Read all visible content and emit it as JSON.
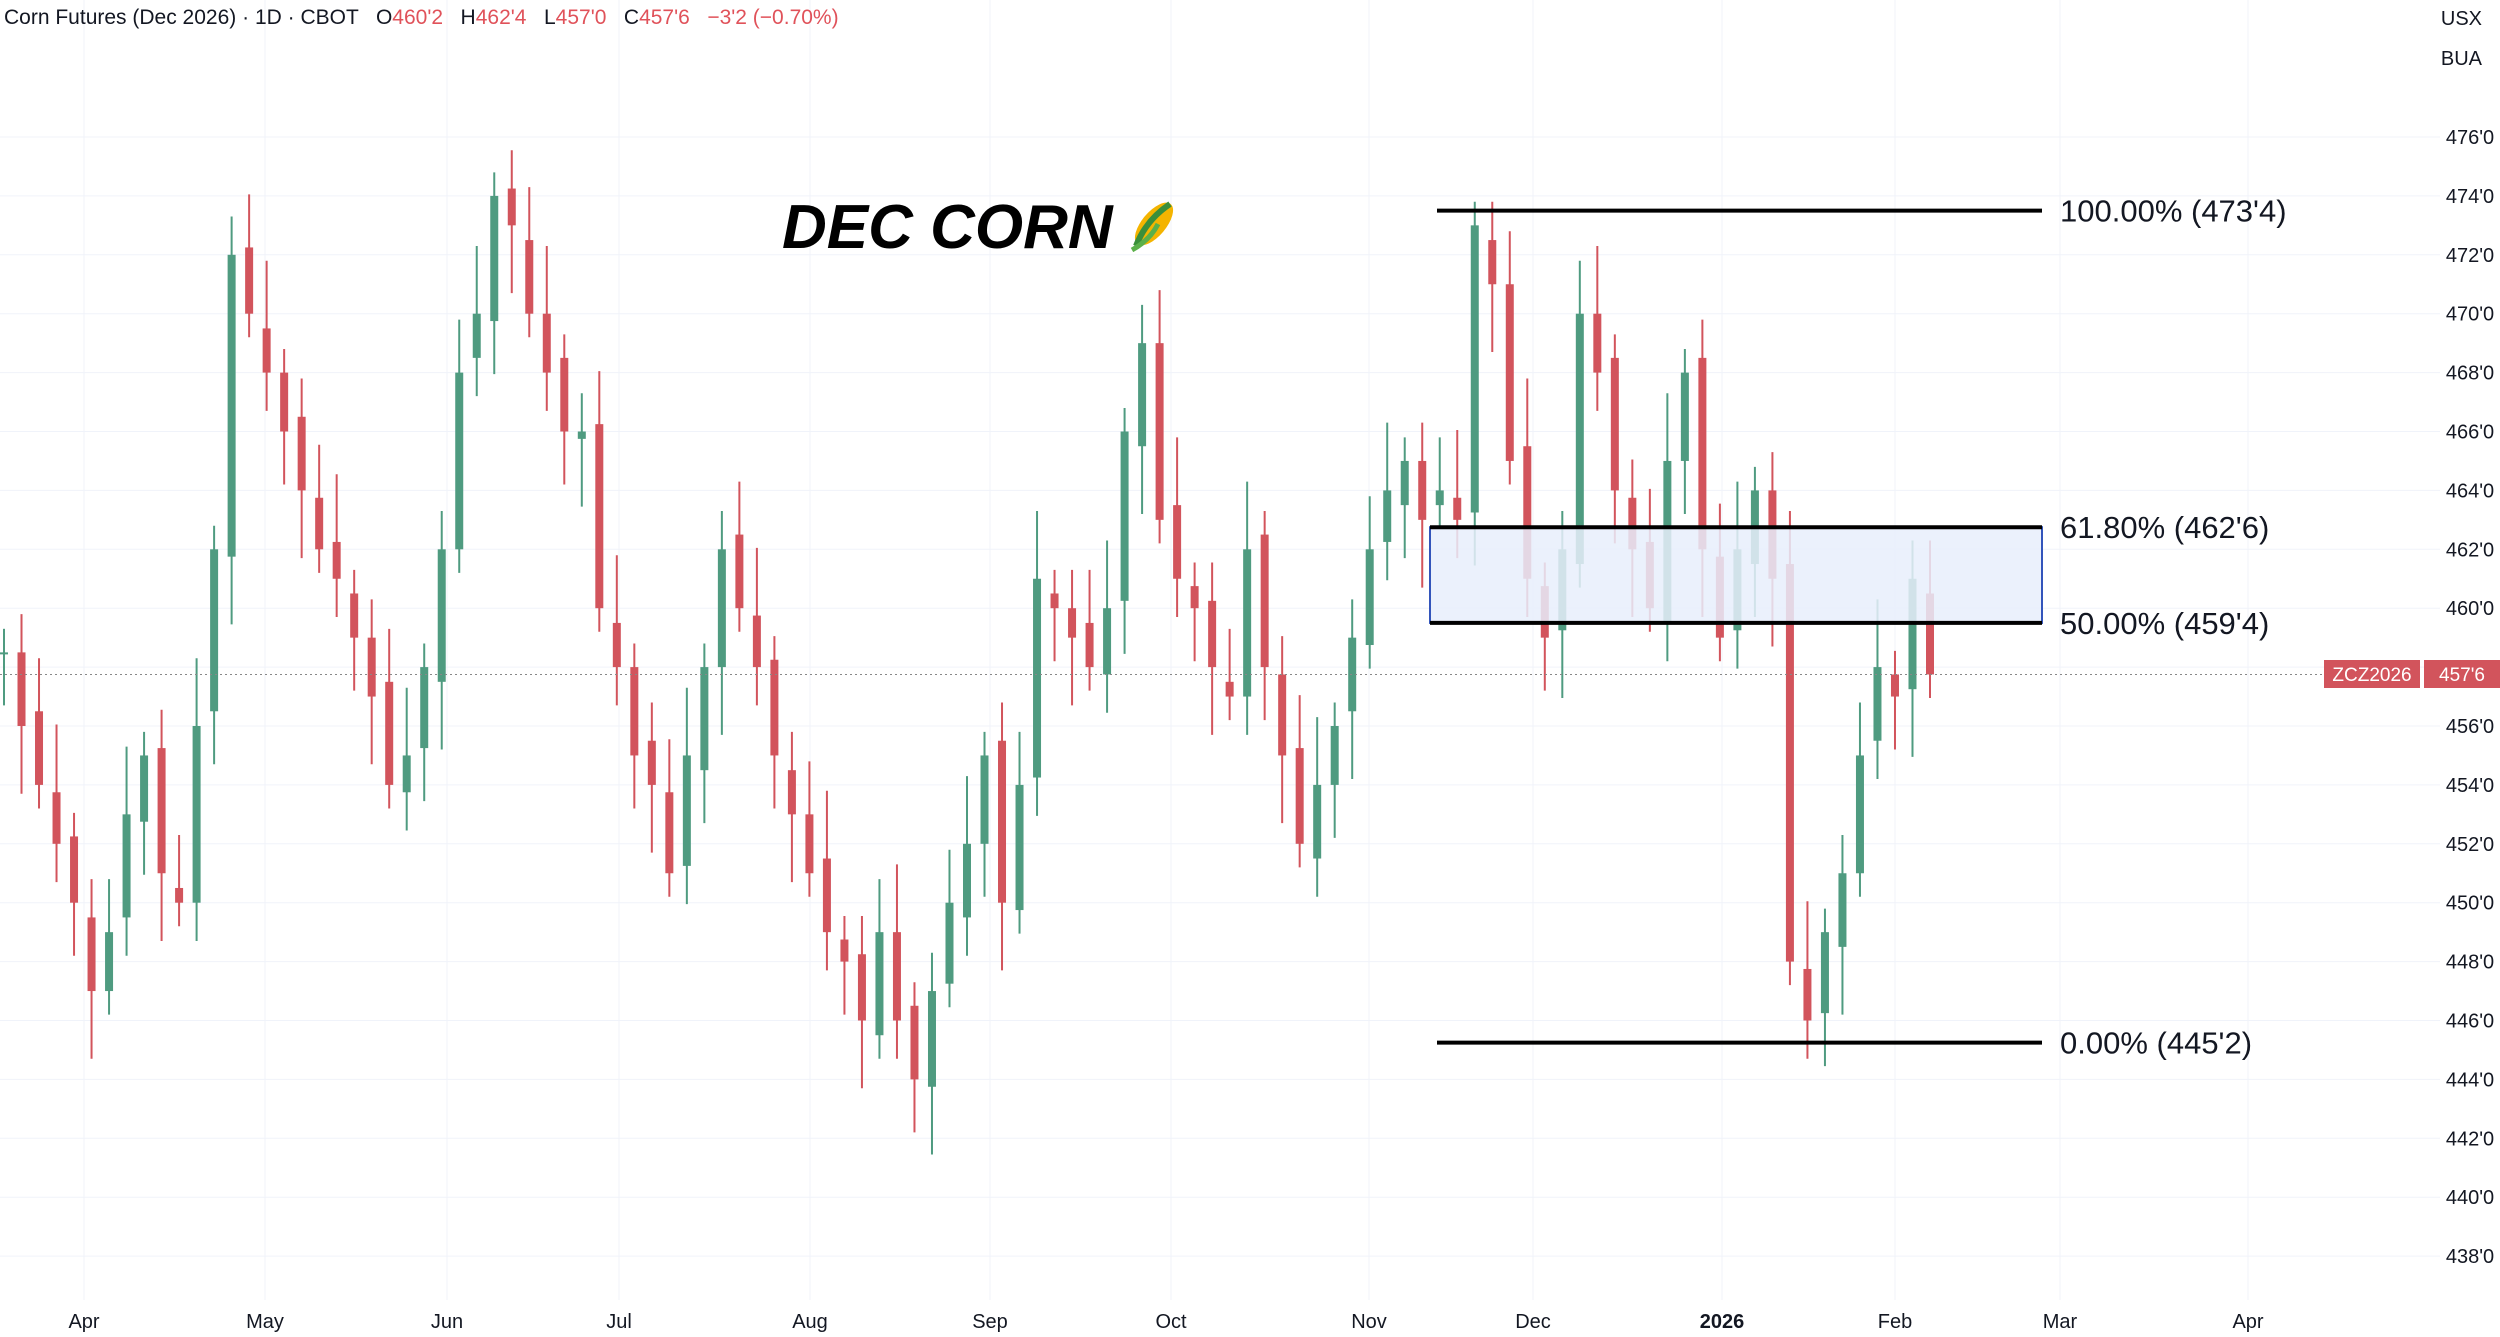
{
  "header": {
    "symbol_name": "Corn Futures (Dec 2026)",
    "interval": "1D",
    "exchange": "CBOT",
    "open_label": "O",
    "open": "460'2",
    "high_label": "H",
    "high": "462'4",
    "low_label": "L",
    "low": "457'0",
    "close_label": "C",
    "close": "457'6",
    "change": "−3'2 (−0.70%)"
  },
  "units": {
    "currency": "USX",
    "unit": "BUA"
  },
  "price_tag": {
    "symbol": "ZCZ2026",
    "price": "457'6"
  },
  "chart_data": {
    "type": "candlestick",
    "title": "DEC CORN",
    "title_icon": "corn-emoji-icon",
    "colors": {
      "up": "#4f9b80",
      "down": "#d2545c",
      "fib_box": "#e8effc",
      "fib_box_border": "#3355bb"
    },
    "x_ticks": [
      "Apr",
      "May",
      "Jun",
      "Jul",
      "Aug",
      "Sep",
      "Oct",
      "Nov",
      "Dec",
      "2026",
      "Feb",
      "Mar",
      "Apr"
    ],
    "y_ticks": [
      "476'0",
      "474'0",
      "472'0",
      "470'0",
      "468'0",
      "466'0",
      "464'0",
      "462'0",
      "460'0",
      "458'0",
      "456'0",
      "454'0",
      "452'0",
      "450'0",
      "448'0",
      "446'0",
      "444'0",
      "442'0",
      "440'0",
      "438'0"
    ],
    "y_range": [
      437,
      477.5
    ],
    "last_close": 457.75,
    "fib_levels": [
      {
        "label": "100.00% (473'4)",
        "price": 473.5
      },
      {
        "label": "61.80% (462'6)",
        "price": 462.75
      },
      {
        "label": "50.00% (459'4)",
        "price": 459.5
      },
      {
        "label": "0.00% (445'2)",
        "price": 445.25
      }
    ],
    "candles_approx_close": [
      458.5,
      456,
      454,
      452,
      450,
      447,
      449,
      453,
      455,
      451,
      450,
      456,
      462,
      472,
      470,
      468,
      466,
      464,
      462,
      461,
      459,
      457,
      454,
      455,
      458,
      462,
      468,
      470,
      474,
      473,
      470,
      468,
      466,
      466,
      460,
      458,
      455,
      454,
      451,
      455,
      458,
      462,
      460,
      458,
      455,
      453,
      451,
      449,
      448,
      446,
      449,
      446,
      444,
      447,
      450,
      452,
      455,
      450,
      454,
      461,
      460,
      459,
      458,
      460,
      466,
      469,
      463,
      461,
      460,
      458,
      457,
      462,
      458,
      455,
      452,
      454,
      456,
      459,
      462,
      464,
      465,
      463,
      464,
      463,
      473,
      471,
      465,
      461,
      459,
      462,
      470,
      468,
      464,
      462,
      460,
      465,
      468,
      462,
      459,
      462,
      464,
      461,
      448,
      446,
      449,
      451,
      455,
      458,
      457,
      461,
      457.75
    ]
  }
}
